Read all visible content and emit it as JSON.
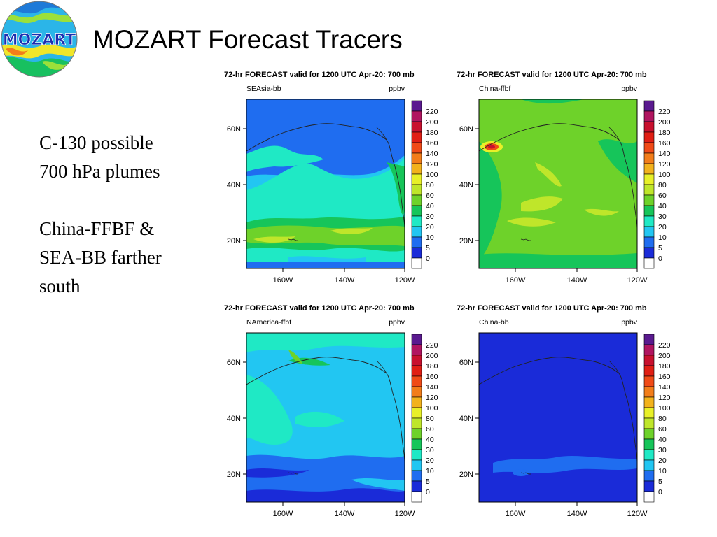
{
  "slide": {
    "title": "MOZART Forecast Tracers",
    "logo_text": "MOZART",
    "notes": [
      [
        "C-130 possible",
        "700 hPa plumes"
      ],
      [
        "China-FFBF &",
        "SEA-BB farther",
        "south"
      ]
    ]
  },
  "maps": [
    {
      "header": "72-hr FORECAST valid for 1200 UTC Apr-20: 700 mb",
      "tracer": "SEAsia-bb",
      "units": "ppbv",
      "pattern": "seasia"
    },
    {
      "header": "72-hr FORECAST valid for 1200 UTC Apr-20: 700 mb",
      "tracer": "China-ffbf",
      "units": "ppbv",
      "pattern": "chinaffbf"
    },
    {
      "header": "72-hr FORECAST valid for 1200 UTC Apr-20: 700 mb",
      "tracer": "NAmerica-ffbf",
      "units": "ppbv",
      "pattern": "namerica"
    },
    {
      "header": "72-hr FORECAST valid for 1200 UTC Apr-20: 700 mb",
      "tracer": "China-bb",
      "units": "ppbv",
      "pattern": "chinabb"
    }
  ],
  "axes": {
    "lat_ticks": [
      "60N",
      "40N",
      "20N"
    ],
    "lon_ticks": [
      "160W",
      "140W",
      "120W"
    ]
  },
  "colorbar": {
    "levels": [
      "220",
      "200",
      "180",
      "160",
      "140",
      "120",
      "100",
      "80",
      "60",
      "40",
      "30",
      "20",
      "10",
      "5",
      "0"
    ],
    "colors": [
      "#ffffff",
      "#1a2bd8",
      "#1f6df0",
      "#22c6f2",
      "#1fe9c5",
      "#16c55a",
      "#6ed22a",
      "#bfe62a",
      "#e8f028",
      "#f2b21c",
      "#f27d1a",
      "#f04a17",
      "#e01e14",
      "#c8102e",
      "#b01560",
      "#5a1a8f"
    ]
  }
}
